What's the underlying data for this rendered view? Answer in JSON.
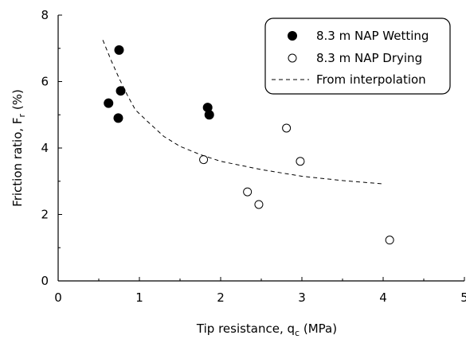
{
  "chart_data": {
    "type": "scatter",
    "xlabel": "Tip resistance, q",
    "xlabel_sub": "c",
    "xlabel_unit": " (MPa)",
    "ylabel": "Friction ratio, F",
    "ylabel_sub": "r",
    "ylabel_unit": " (%)",
    "xlim": [
      0,
      5
    ],
    "ylim": [
      0,
      8
    ],
    "xticks": [
      "0",
      "1",
      "2",
      "3",
      "4",
      "5"
    ],
    "yticks": [
      "0",
      "2",
      "4",
      "6",
      "8"
    ],
    "grid": false,
    "legend_position": "top-right",
    "series": [
      {
        "name": "8.3 m NAP Wetting",
        "marker": "filled-circle",
        "color": "#000000",
        "points": [
          {
            "x": 0.75,
            "y": 6.95
          },
          {
            "x": 0.77,
            "y": 5.72
          },
          {
            "x": 0.62,
            "y": 5.35
          },
          {
            "x": 0.74,
            "y": 4.9
          },
          {
            "x": 1.84,
            "y": 5.22
          },
          {
            "x": 1.86,
            "y": 5.0
          }
        ]
      },
      {
        "name": "8.3 m NAP Drying",
        "marker": "open-circle",
        "color": "#000000",
        "points": [
          {
            "x": 1.79,
            "y": 3.65
          },
          {
            "x": 2.81,
            "y": 4.6
          },
          {
            "x": 2.98,
            "y": 3.6
          },
          {
            "x": 2.33,
            "y": 2.68
          },
          {
            "x": 2.47,
            "y": 2.3
          },
          {
            "x": 4.08,
            "y": 1.23
          }
        ]
      },
      {
        "name": "From interpolation",
        "marker": "dashed-line",
        "color": "#000000",
        "points": [
          {
            "x": 0.55,
            "y": 7.25
          },
          {
            "x": 0.65,
            "y": 6.65
          },
          {
            "x": 0.75,
            "y": 6.1
          },
          {
            "x": 0.85,
            "y": 5.6
          },
          {
            "x": 0.95,
            "y": 5.15
          },
          {
            "x": 1.1,
            "y": 4.8
          },
          {
            "x": 1.3,
            "y": 4.35
          },
          {
            "x": 1.5,
            "y": 4.05
          },
          {
            "x": 1.75,
            "y": 3.8
          },
          {
            "x": 2.0,
            "y": 3.6
          },
          {
            "x": 2.5,
            "y": 3.35
          },
          {
            "x": 3.0,
            "y": 3.15
          },
          {
            "x": 3.5,
            "y": 3.02
          },
          {
            "x": 4.0,
            "y": 2.92
          }
        ]
      }
    ]
  }
}
